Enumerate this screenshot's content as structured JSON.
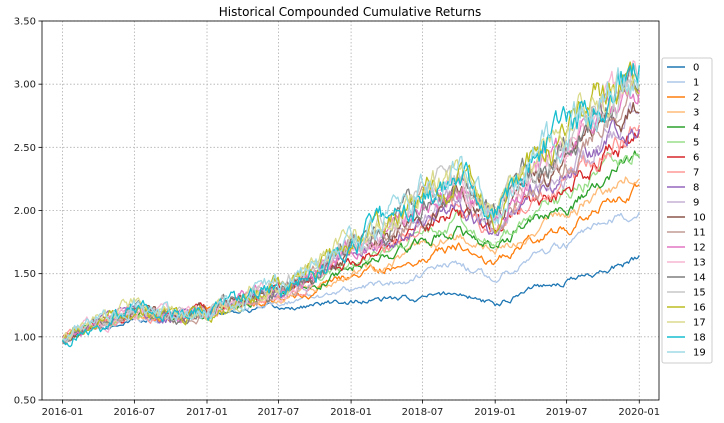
{
  "chart_data": {
    "type": "line",
    "title": "Historical Compounded Cumulative Returns",
    "xlabel": "",
    "ylabel": "",
    "x_ticks": [
      "2016-01",
      "2016-07",
      "2017-01",
      "2017-07",
      "2018-01",
      "2018-07",
      "2019-01",
      "2019-07",
      "2020-01"
    ],
    "y_ticks": [
      "0.50",
      "1.00",
      "1.50",
      "2.00",
      "2.50",
      "3.00",
      "3.50"
    ],
    "ylim": [
      0.5,
      3.5
    ],
    "xlim": [
      "2015-11-10",
      "2020-02-20"
    ],
    "grid": true,
    "legend_position": "right",
    "x": [
      "2016-01-01",
      "2016-04-01",
      "2016-07-01",
      "2016-10-01",
      "2017-01-01",
      "2017-04-01",
      "2017-07-01",
      "2017-10-01",
      "2018-01-01",
      "2018-04-01",
      "2018-07-01",
      "2018-10-01",
      "2019-01-01",
      "2019-04-01",
      "2019-07-01",
      "2019-10-01",
      "2020-01-01"
    ],
    "series": [
      {
        "name": "0",
        "color": "#1f77b4",
        "values": [
          1.0,
          1.08,
          1.13,
          1.15,
          1.2,
          1.21,
          1.22,
          1.25,
          1.28,
          1.29,
          1.31,
          1.35,
          1.25,
          1.4,
          1.45,
          1.52,
          1.62
        ]
      },
      {
        "name": "1",
        "color": "#aec7e8",
        "values": [
          0.99,
          1.09,
          1.14,
          1.15,
          1.21,
          1.24,
          1.27,
          1.32,
          1.38,
          1.42,
          1.5,
          1.58,
          1.45,
          1.65,
          1.72,
          1.86,
          2.0
        ]
      },
      {
        "name": "2",
        "color": "#ff7f0e",
        "values": [
          0.99,
          1.09,
          1.15,
          1.15,
          1.21,
          1.25,
          1.29,
          1.36,
          1.48,
          1.54,
          1.63,
          1.72,
          1.58,
          1.79,
          1.85,
          2.02,
          2.18
        ]
      },
      {
        "name": "3",
        "color": "#ffbb78",
        "values": [
          0.99,
          1.1,
          1.16,
          1.15,
          1.21,
          1.26,
          1.31,
          1.38,
          1.52,
          1.58,
          1.7,
          1.81,
          1.64,
          1.87,
          1.95,
          2.14,
          2.3
        ]
      },
      {
        "name": "4",
        "color": "#2ca02c",
        "values": [
          0.99,
          1.1,
          1.17,
          1.15,
          1.21,
          1.26,
          1.32,
          1.4,
          1.56,
          1.62,
          1.76,
          1.87,
          1.7,
          1.94,
          2.03,
          2.24,
          2.41
        ]
      },
      {
        "name": "5",
        "color": "#98df8a",
        "values": [
          0.99,
          1.1,
          1.17,
          1.15,
          1.21,
          1.27,
          1.33,
          1.42,
          1.59,
          1.66,
          1.81,
          1.93,
          1.74,
          2.0,
          2.1,
          2.33,
          2.5
        ]
      },
      {
        "name": "6",
        "color": "#d62728",
        "values": [
          0.98,
          1.1,
          1.18,
          1.15,
          1.21,
          1.27,
          1.34,
          1.43,
          1.62,
          1.69,
          1.86,
          1.98,
          1.78,
          2.05,
          2.16,
          2.4,
          2.58
        ]
      },
      {
        "name": "7",
        "color": "#ff9896",
        "values": [
          0.98,
          1.11,
          1.18,
          1.15,
          1.21,
          1.28,
          1.35,
          1.45,
          1.64,
          1.72,
          1.9,
          2.03,
          1.81,
          2.1,
          2.22,
          2.47,
          2.66
        ]
      },
      {
        "name": "8",
        "color": "#9467bd",
        "values": [
          0.98,
          1.11,
          1.19,
          1.15,
          1.21,
          1.28,
          1.36,
          1.46,
          1.66,
          1.75,
          1.94,
          2.07,
          1.84,
          2.14,
          2.27,
          2.54,
          2.74
        ]
      },
      {
        "name": "9",
        "color": "#c5b0d5",
        "values": [
          0.98,
          1.11,
          1.19,
          1.15,
          1.21,
          1.29,
          1.37,
          1.47,
          1.68,
          1.77,
          1.97,
          2.11,
          1.86,
          2.18,
          2.32,
          2.6,
          2.81
        ]
      },
      {
        "name": "10",
        "color": "#8c564b",
        "values": [
          0.98,
          1.11,
          1.2,
          1.15,
          1.21,
          1.29,
          1.38,
          1.48,
          1.7,
          1.79,
          2.0,
          2.14,
          1.88,
          2.21,
          2.36,
          2.65,
          2.87
        ]
      },
      {
        "name": "11",
        "color": "#c49c94",
        "values": [
          0.97,
          1.11,
          1.2,
          1.15,
          1.21,
          1.29,
          1.38,
          1.49,
          1.72,
          1.81,
          2.03,
          2.17,
          1.9,
          2.24,
          2.4,
          2.7,
          2.92
        ]
      },
      {
        "name": "12",
        "color": "#e377c2",
        "values": [
          0.97,
          1.12,
          1.2,
          1.15,
          1.21,
          1.3,
          1.39,
          1.5,
          1.73,
          1.83,
          2.05,
          2.2,
          1.91,
          2.27,
          2.44,
          2.75,
          2.97
        ]
      },
      {
        "name": "13",
        "color": "#f7b6d2",
        "values": [
          0.97,
          1.12,
          1.21,
          1.15,
          1.21,
          1.3,
          1.39,
          1.51,
          1.74,
          1.84,
          2.07,
          2.22,
          1.92,
          2.29,
          2.47,
          2.79,
          3.01
        ]
      },
      {
        "name": "14",
        "color": "#7f7f7f",
        "values": [
          0.97,
          1.12,
          1.21,
          1.15,
          1.21,
          1.3,
          1.4,
          1.51,
          1.75,
          1.86,
          2.09,
          2.24,
          1.93,
          2.31,
          2.5,
          2.82,
          3.05
        ]
      },
      {
        "name": "15",
        "color": "#c7c7c7",
        "values": [
          0.97,
          1.12,
          1.21,
          1.15,
          1.21,
          1.3,
          1.4,
          1.52,
          1.76,
          1.87,
          2.11,
          2.26,
          1.94,
          2.33,
          2.52,
          2.85,
          3.08
        ]
      },
      {
        "name": "16",
        "color": "#bcbd22",
        "values": [
          0.97,
          1.12,
          1.21,
          1.15,
          1.21,
          1.31,
          1.41,
          1.53,
          1.77,
          1.88,
          2.12,
          2.28,
          1.95,
          2.35,
          2.54,
          2.88,
          3.1
        ]
      },
      {
        "name": "17",
        "color": "#dbdb8d",
        "values": [
          0.96,
          1.12,
          1.22,
          1.15,
          1.21,
          1.31,
          1.41,
          1.53,
          1.78,
          1.89,
          2.13,
          2.29,
          1.95,
          2.36,
          2.56,
          2.9,
          3.12
        ]
      },
      {
        "name": "18",
        "color": "#17becf",
        "values": [
          0.96,
          1.12,
          1.22,
          1.15,
          1.21,
          1.31,
          1.41,
          1.54,
          1.79,
          1.9,
          2.14,
          2.3,
          1.96,
          2.37,
          2.58,
          2.92,
          3.14
        ]
      },
      {
        "name": "19",
        "color": "#9edae5",
        "values": [
          0.96,
          1.12,
          1.22,
          1.15,
          1.21,
          1.31,
          1.42,
          1.54,
          1.79,
          1.9,
          2.15,
          2.31,
          1.96,
          2.38,
          2.59,
          2.93,
          3.15
        ]
      }
    ]
  }
}
